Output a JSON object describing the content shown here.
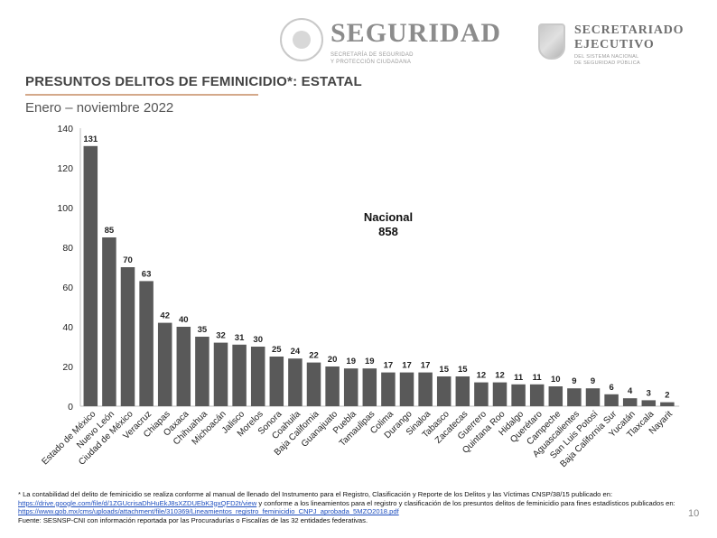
{
  "header": {
    "seguridad_title": "SEGURIDAD",
    "seguridad_sub_1": "SECRETARÍA DE SEGURIDAD",
    "seguridad_sub_2": "Y PROTECCIÓN CIUDADANA",
    "sec_title_1": "SECRETARIADO",
    "sec_title_2": "EJECUTIVO",
    "sec_sub_1": "DEL SISTEMA NACIONAL",
    "sec_sub_2": "DE SEGURIDAD PÚBLICA"
  },
  "slide": {
    "title": "PRESUNTOS DELITOS DE FEMINICIDIO*: ESTATAL",
    "subtitle": "Enero – noviembre 2022",
    "page_number": "10"
  },
  "footnote": {
    "line1_text": "* La contabilidad del delito de feminicidio se realiza conforme al manual de llenado del Instrumento para el Registro, Clasificación y Reporte de los Delitos y las Víctimas CNSP/38/15 publicado en: ",
    "line1_link": "https://drive.google.com/file/d/1ZGUcrisaDhHuEkJ8sXZDUEbK3gxQFD2t/view",
    "line1_tail": " y conforme a los lineamientos para el registro y clasificación de los presuntos delitos de feminicidio para fines estadísticos publicados en:",
    "link2": "https://www.gob.mx/cms/uploads/attachment/file/310369/Lineamientos_registro_feminicidio_CNPJ_aprobada_5MZO2018.pdf",
    "source": "Fuente: SESNSP-CNI con información reportada por las Procuradurías o Fiscalías de las 32 entidades federativas."
  },
  "chart_data": {
    "type": "bar",
    "categories": [
      "Estado de México",
      "Nuevo León",
      "Ciudad de México",
      "Veracruz",
      "Chiapas",
      "Oaxaca",
      "Chihuahua",
      "Michoacán",
      "Jalisco",
      "Morelos",
      "Sonora",
      "Coahuila",
      "Baja California",
      "Guanajuato",
      "Puebla",
      "Tamaulipas",
      "Colima",
      "Durango",
      "Sinaloa",
      "Tabasco",
      "Zacatecas",
      "Guerrero",
      "Quintana Roo",
      "Hidalgo",
      "Querétaro",
      "Campeche",
      "Aguascalientes",
      "San Luis Potosí",
      "Baja California Sur",
      "Yucatán",
      "Tlaxcala",
      "Nayarit"
    ],
    "values": [
      131,
      85,
      70,
      63,
      42,
      40,
      35,
      32,
      31,
      30,
      25,
      24,
      22,
      20,
      19,
      19,
      17,
      17,
      17,
      15,
      15,
      12,
      12,
      11,
      11,
      10,
      9,
      9,
      6,
      4,
      3,
      2
    ],
    "ylim": [
      0,
      140
    ],
    "yticks": [
      0,
      20,
      40,
      60,
      80,
      100,
      120,
      140
    ],
    "annotation_line1": "Nacional",
    "annotation_line2": "858",
    "bar_color": "#595959",
    "grid": false
  }
}
